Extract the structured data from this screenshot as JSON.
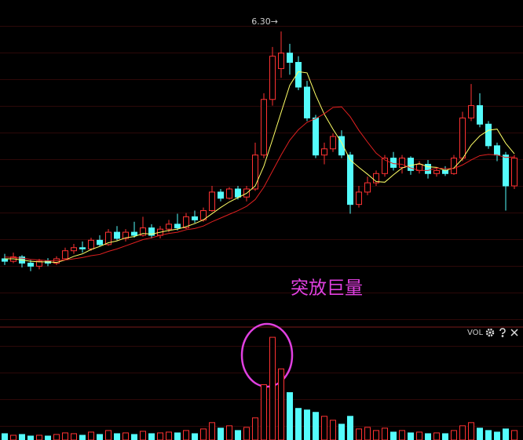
{
  "chart_data": {
    "type": "candlestick",
    "up_color": "#ff3232",
    "down_color": "#54fcfc",
    "open": [
      2.62,
      2.58,
      2.65,
      2.55,
      2.5,
      2.58,
      2.55,
      2.62,
      2.75,
      2.8,
      2.78,
      2.92,
      2.85,
      3.05,
      2.95,
      3.05,
      3.0,
      3.12,
      3.0,
      3.1,
      3.18,
      3.12,
      3.3,
      3.25,
      3.4,
      3.7,
      3.6,
      3.75,
      3.62,
      3.75,
      4.3,
      5.2,
      5.7,
      5.95,
      5.8,
      5.4,
      4.9,
      4.3,
      4.4,
      4.6,
      4.3,
      3.5,
      3.7,
      3.85,
      4.0,
      4.25,
      4.1,
      4.25,
      4.05,
      4.15,
      4.0,
      4.05,
      4.0,
      4.25,
      4.9,
      5.1,
      4.8,
      4.45,
      4.3,
      3.8
    ],
    "high": [
      2.7,
      2.72,
      2.68,
      2.6,
      2.62,
      2.63,
      2.66,
      2.8,
      2.86,
      2.9,
      2.96,
      3.0,
      3.1,
      3.15,
      3.1,
      3.22,
      3.3,
      3.18,
      3.15,
      3.25,
      3.35,
      3.36,
      3.4,
      3.45,
      3.8,
      3.75,
      3.78,
      3.8,
      3.8,
      4.5,
      5.3,
      6.05,
      6.3,
      6.1,
      5.9,
      5.5,
      4.95,
      4.5,
      4.65,
      4.7,
      4.35,
      3.8,
      3.95,
      4.05,
      4.3,
      4.35,
      4.3,
      4.28,
      4.2,
      4.22,
      4.1,
      4.12,
      4.3,
      5.0,
      5.45,
      5.3,
      4.85,
      4.5,
      4.35,
      4.3
    ],
    "low": [
      2.52,
      2.55,
      2.48,
      2.42,
      2.45,
      2.5,
      2.52,
      2.6,
      2.7,
      2.72,
      2.75,
      2.82,
      2.83,
      2.92,
      2.9,
      2.96,
      2.98,
      2.95,
      2.95,
      3.05,
      3.08,
      3.1,
      3.2,
      3.22,
      3.38,
      3.55,
      3.58,
      3.58,
      3.55,
      3.72,
      4.25,
      5.1,
      5.55,
      5.6,
      5.35,
      4.85,
      4.25,
      4.15,
      4.35,
      4.25,
      3.35,
      3.45,
      3.65,
      3.8,
      3.95,
      4.05,
      4.0,
      3.98,
      4.0,
      3.92,
      3.95,
      3.96,
      3.98,
      4.2,
      4.85,
      4.75,
      4.4,
      4.2,
      3.4,
      3.75
    ],
    "close": [
      2.58,
      2.65,
      2.55,
      2.5,
      2.58,
      2.55,
      2.62,
      2.75,
      2.8,
      2.78,
      2.92,
      2.85,
      3.05,
      2.95,
      3.05,
      3.0,
      3.12,
      3.0,
      3.1,
      3.18,
      3.12,
      3.3,
      3.25,
      3.4,
      3.7,
      3.6,
      3.75,
      3.62,
      3.75,
      4.3,
      5.2,
      5.9,
      5.95,
      5.8,
      5.4,
      4.9,
      4.3,
      4.4,
      4.6,
      4.3,
      3.5,
      3.7,
      3.85,
      4.0,
      4.25,
      4.1,
      4.25,
      4.05,
      4.15,
      4.0,
      4.05,
      4.0,
      4.25,
      4.9,
      5.1,
      4.8,
      4.45,
      4.3,
      3.8,
      4.25
    ],
    "ylim": [
      1.54,
      6.81
    ],
    "ma": [
      {
        "color": "#ffff66",
        "values": [
          2.62,
          2.62,
          2.6,
          2.58,
          2.57,
          2.57,
          2.56,
          2.6,
          2.66,
          2.7,
          2.77,
          2.82,
          2.88,
          2.91,
          2.96,
          2.98,
          3.03,
          3.02,
          3.05,
          3.08,
          3.1,
          3.14,
          3.19,
          3.25,
          3.35,
          3.45,
          3.54,
          3.61,
          3.68,
          3.8,
          4.12,
          4.55,
          4.99,
          5.43,
          5.65,
          5.63,
          5.27,
          4.96,
          4.72,
          4.5,
          4.22,
          4.1,
          3.99,
          3.87,
          3.86,
          3.98,
          4.09,
          4.13,
          4.16,
          4.11,
          4.1,
          4.05,
          4.09,
          4.24,
          4.46,
          4.61,
          4.7,
          4.72,
          4.49,
          4.32
        ]
      },
      {
        "color": "#e02020",
        "values": [
          2.65,
          2.64,
          2.63,
          2.61,
          2.6,
          2.59,
          2.59,
          2.6,
          2.62,
          2.64,
          2.67,
          2.69,
          2.74,
          2.78,
          2.83,
          2.88,
          2.93,
          2.96,
          3.0,
          3.03,
          3.05,
          3.09,
          3.11,
          3.15,
          3.22,
          3.28,
          3.34,
          3.4,
          3.47,
          3.58,
          3.78,
          4.04,
          4.3,
          4.54,
          4.71,
          4.83,
          4.89,
          4.97,
          5.07,
          5.08,
          4.92,
          4.7,
          4.51,
          4.33,
          4.22,
          4.16,
          4.15,
          4.09,
          4.05,
          4.05,
          4.09,
          4.08,
          4.08,
          4.14,
          4.22,
          4.29,
          4.31,
          4.3,
          4.26,
          4.27
        ]
      }
    ],
    "annotation": {
      "value": 6.3,
      "label": "6.30→"
    },
    "callout": "突放巨量",
    "volume": {
      "label": "VOL",
      "ylim": [
        0,
        140
      ],
      "values": [
        8,
        6,
        7,
        5,
        6,
        5,
        7,
        9,
        8,
        6,
        10,
        7,
        12,
        8,
        9,
        7,
        11,
        8,
        9,
        10,
        9,
        12,
        8,
        14,
        22,
        15,
        18,
        12,
        16,
        28,
        70,
        130,
        90,
        60,
        40,
        38,
        35,
        30,
        25,
        20,
        30,
        14,
        16,
        12,
        15,
        10,
        12,
        9,
        10,
        8,
        9,
        8,
        12,
        18,
        22,
        15,
        12,
        10,
        14,
        12
      ]
    }
  }
}
